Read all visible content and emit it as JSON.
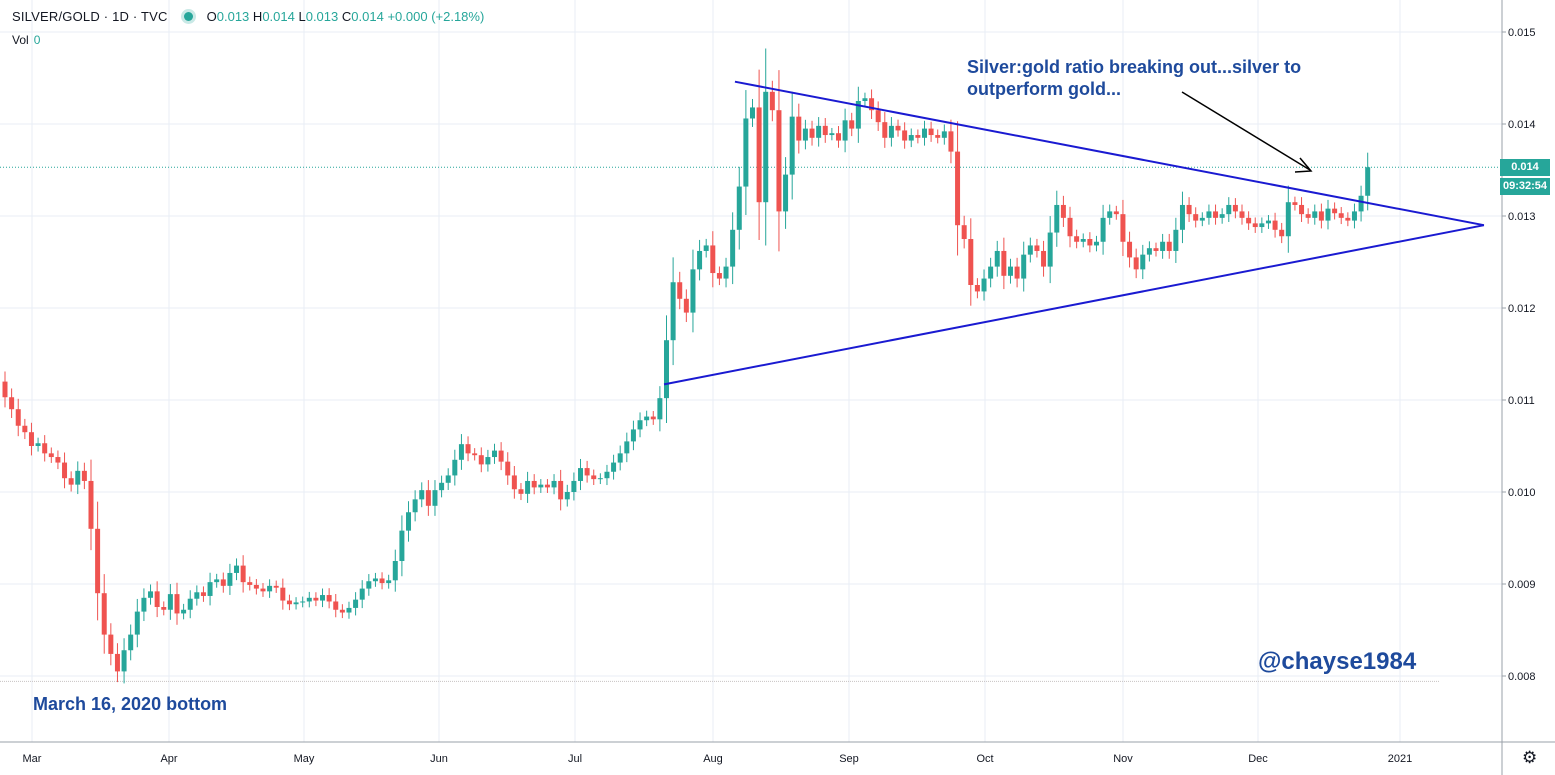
{
  "header": {
    "symbol": "SILVER/GOLD · 1D · TVC",
    "open_label": "O",
    "open": "0.013",
    "high_label": "H",
    "high": "0.014",
    "low_label": "L",
    "low": "0.013",
    "close_label": "C",
    "close": "0.014",
    "change": "+0.000 (+2.18%)",
    "volume_label": "Vol",
    "volume": "0"
  },
  "annotations": {
    "breakout_note_line1": "Silver:gold ratio breaking out...silver to",
    "breakout_note_line2": "outperform gold...",
    "handle": "@chayse1984",
    "bottom_note": "March 16, 2020 bottom"
  },
  "price_scale": {
    "last_price": "0.014",
    "countdown": "09:32:54"
  },
  "colors": {
    "up": "#26a69a",
    "down": "#ef5350",
    "trendline": "#1a1ad1",
    "text_blue": "#1e4a9c"
  },
  "chart_data": {
    "type": "candlestick",
    "title": "SILVER/GOLD · 1D · TVC",
    "xlabel": "",
    "ylabel": "",
    "x_ticks": [
      "Mar",
      "Apr",
      "May",
      "Jun",
      "Jul",
      "Aug",
      "Sep",
      "Oct",
      "Nov",
      "Dec",
      "2021"
    ],
    "y_ticks": [
      "0.008",
      "0.009",
      "0.010",
      "0.011",
      "0.012",
      "0.013",
      "0.014",
      "0.015"
    ],
    "ylim": [
      0.0073,
      0.01531
    ],
    "bottom_date": "March 16, 2020",
    "last_close": 0.01353,
    "trendlines": [
      {
        "name": "descending resistance",
        "from": [
          "2020-08-06",
          0.01446
        ],
        "to": [
          "2021-01-20",
          0.0129
        ]
      },
      {
        "name": "ascending support",
        "from": [
          "2020-07-21",
          0.01117
        ],
        "to": [
          "2021-01-20",
          0.0129
        ]
      }
    ],
    "series": [
      {
        "name": "Mar",
        "closes": [
          0.01103,
          0.0109,
          0.01072,
          0.01065,
          0.0105,
          0.01053,
          0.01042,
          0.01038,
          0.01032,
          0.01015,
          0.01008,
          0.01023,
          0.01012,
          0.0096,
          0.0089,
          0.00845,
          0.00824,
          0.00805,
          0.00828,
          0.00845,
          0.0087
        ]
      },
      {
        "name": "Apr",
        "closes": [
          0.00885,
          0.00892,
          0.00875,
          0.00872,
          0.00889,
          0.00868,
          0.00872,
          0.00884,
          0.00891,
          0.00887,
          0.00902,
          0.00905,
          0.00898,
          0.00912,
          0.0092,
          0.00902,
          0.00899,
          0.00895,
          0.00892,
          0.00898,
          0.00896
        ]
      },
      {
        "name": "May",
        "closes": [
          0.00882,
          0.00878,
          0.0088,
          0.00881,
          0.00885,
          0.00882,
          0.00888,
          0.00881,
          0.00872,
          0.00869,
          0.00874,
          0.00883,
          0.00895,
          0.00903,
          0.00906,
          0.00901,
          0.00904,
          0.00925,
          0.00958,
          0.00978,
          0.00992
        ]
      },
      {
        "name": "Jun",
        "closes": [
          0.01002,
          0.00985,
          0.01002,
          0.0101,
          0.01018,
          0.01035,
          0.01052,
          0.01042,
          0.0104,
          0.0103,
          0.01038,
          0.01045,
          0.01033,
          0.01018,
          0.01003,
          0.00998,
          0.01012,
          0.01005,
          0.01008,
          0.01005,
          0.01012,
          0.00992
        ]
      },
      {
        "name": "Jul",
        "closes": [
          0.01,
          0.01012,
          0.01026,
          0.01018,
          0.01014,
          0.01015,
          0.01022,
          0.01032,
          0.01042,
          0.01055,
          0.01068,
          0.01078,
          0.01082,
          0.01079,
          0.01102,
          0.01165,
          0.01228,
          0.0121,
          0.01195,
          0.01242,
          0.01262,
          0.01268,
          0.01238
        ]
      },
      {
        "name": "Aug",
        "closes": [
          0.01232,
          0.01245,
          0.01285,
          0.01332,
          0.01406,
          0.01418,
          0.01315,
          0.01435,
          0.01415,
          0.01305,
          0.01345,
          0.01408,
          0.01382,
          0.01395,
          0.01385,
          0.01398,
          0.01388,
          0.0139,
          0.01382,
          0.01404,
          0.01395
        ]
      },
      {
        "name": "Sep",
        "closes": [
          0.01425,
          0.01428,
          0.01415,
          0.01402,
          0.01385,
          0.01398,
          0.01393,
          0.01382,
          0.01388,
          0.01385,
          0.01395,
          0.01388,
          0.01385,
          0.01392,
          0.0137,
          0.0129,
          0.01275,
          0.01225,
          0.01218,
          0.01232,
          0.01245,
          0.01262
        ]
      },
      {
        "name": "Oct",
        "closes": [
          0.01235,
          0.01245,
          0.01232,
          0.01258,
          0.01268,
          0.01262,
          0.01245,
          0.01282,
          0.01312,
          0.01298,
          0.01278,
          0.01272,
          0.01275,
          0.01268,
          0.01272,
          0.01298,
          0.01305,
          0.01302,
          0.01272,
          0.01255,
          0.01242,
          0.01258
        ]
      },
      {
        "name": "Nov",
        "closes": [
          0.01265,
          0.01262,
          0.01272,
          0.01262,
          0.01285,
          0.01312,
          0.01302,
          0.01295,
          0.01298,
          0.01305,
          0.01298,
          0.01302,
          0.01312,
          0.01305,
          0.01298,
          0.01292,
          0.01288,
          0.01292,
          0.01295,
          0.01285,
          0.01278
        ]
      },
      {
        "name": "Dec",
        "closes": [
          0.01315,
          0.01312,
          0.01302,
          0.01298,
          0.01305,
          0.01295,
          0.01308,
          0.01303,
          0.01298,
          0.01295,
          0.01305,
          0.01322,
          0.01353
        ]
      }
    ]
  }
}
